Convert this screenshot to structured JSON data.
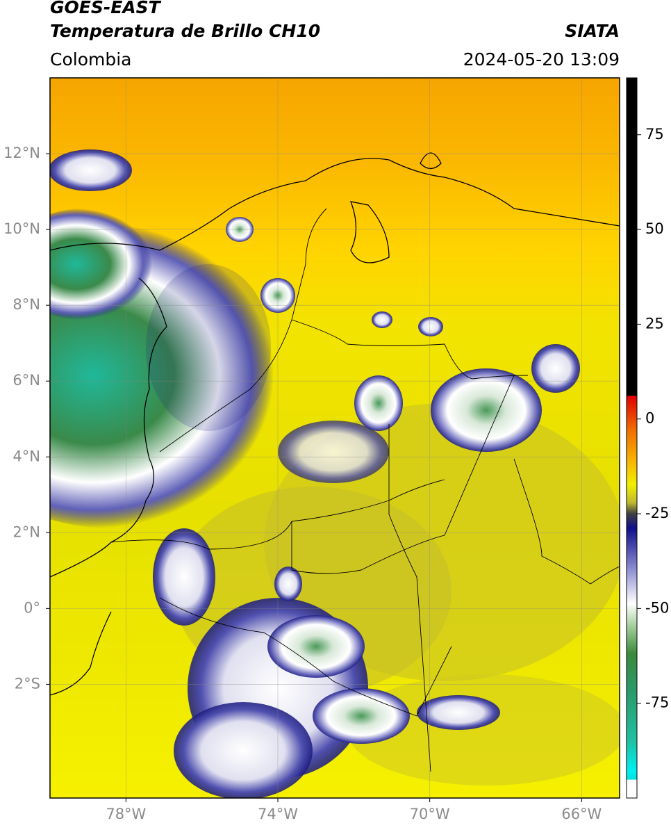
{
  "header": {
    "title": "GOES-EAST",
    "subtitle": "Temperatura de Brillo CH10",
    "region": "Colombia",
    "source": "SIATA",
    "datetime": "2024-05-20 13:09"
  },
  "map": {
    "lonlim": [
      -80,
      -65
    ],
    "latlim": [
      -5,
      14
    ],
    "lonticks": [
      {
        "value": -78,
        "label": "78°W"
      },
      {
        "value": -74,
        "label": "74°W"
      },
      {
        "value": -70,
        "label": "70°W"
      },
      {
        "value": -66,
        "label": "66°W"
      }
    ],
    "latticks": [
      {
        "value": 12,
        "label": "12°N"
      },
      {
        "value": 10,
        "label": "10°N"
      },
      {
        "value": 8,
        "label": "8°N"
      },
      {
        "value": 6,
        "label": "6°N"
      },
      {
        "value": 4,
        "label": "4°N"
      },
      {
        "value": 2,
        "label": "2°N"
      },
      {
        "value": 0,
        "label": "0°"
      },
      {
        "value": -2,
        "label": "2°S"
      }
    ],
    "grid": true
  },
  "colorbar": {
    "clim": [
      -100,
      90
    ],
    "ticks": [
      75,
      50,
      25,
      0,
      -25,
      -50,
      -75
    ]
  }
}
